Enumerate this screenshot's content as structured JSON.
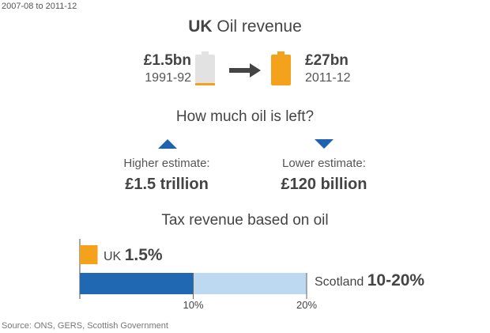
{
  "header": {
    "date_range": "2007-08 to 2011-12",
    "title_bold": "UK",
    "title_rest": " Oil revenue"
  },
  "revenue": {
    "from": {
      "value": "£1.5bn",
      "year": "1991-92"
    },
    "to": {
      "value": "£27bn",
      "year": "2011-12"
    }
  },
  "reserves": {
    "question": "How much oil is left?",
    "higher": {
      "label": "Higher estimate:",
      "value": "£1.5 trillion"
    },
    "lower": {
      "label": "Lower estimate:",
      "value": "£120 billion"
    }
  },
  "source": "Source: ONS, GERS, Scottish Government",
  "colors": {
    "orange": "#f4a11c",
    "barrel_grey": "#e2e2e2",
    "dark_blue": "#2168b3",
    "light_blue": "#bdd9f2",
    "arrow_blue": "#1f63b0",
    "arrow_grey": "#444444"
  },
  "chart_data": {
    "type": "bar",
    "title": "Tax revenue based on oil",
    "xlim": [
      0,
      20
    ],
    "ticks": [
      "10%",
      "20%"
    ],
    "tick_values": [
      10,
      20
    ],
    "series": [
      {
        "name": "UK",
        "label_value": "1.5%",
        "values": [
          1.5
        ]
      },
      {
        "name": "Scotland",
        "label_value": "10-20%",
        "values": [
          10,
          20
        ]
      }
    ]
  }
}
